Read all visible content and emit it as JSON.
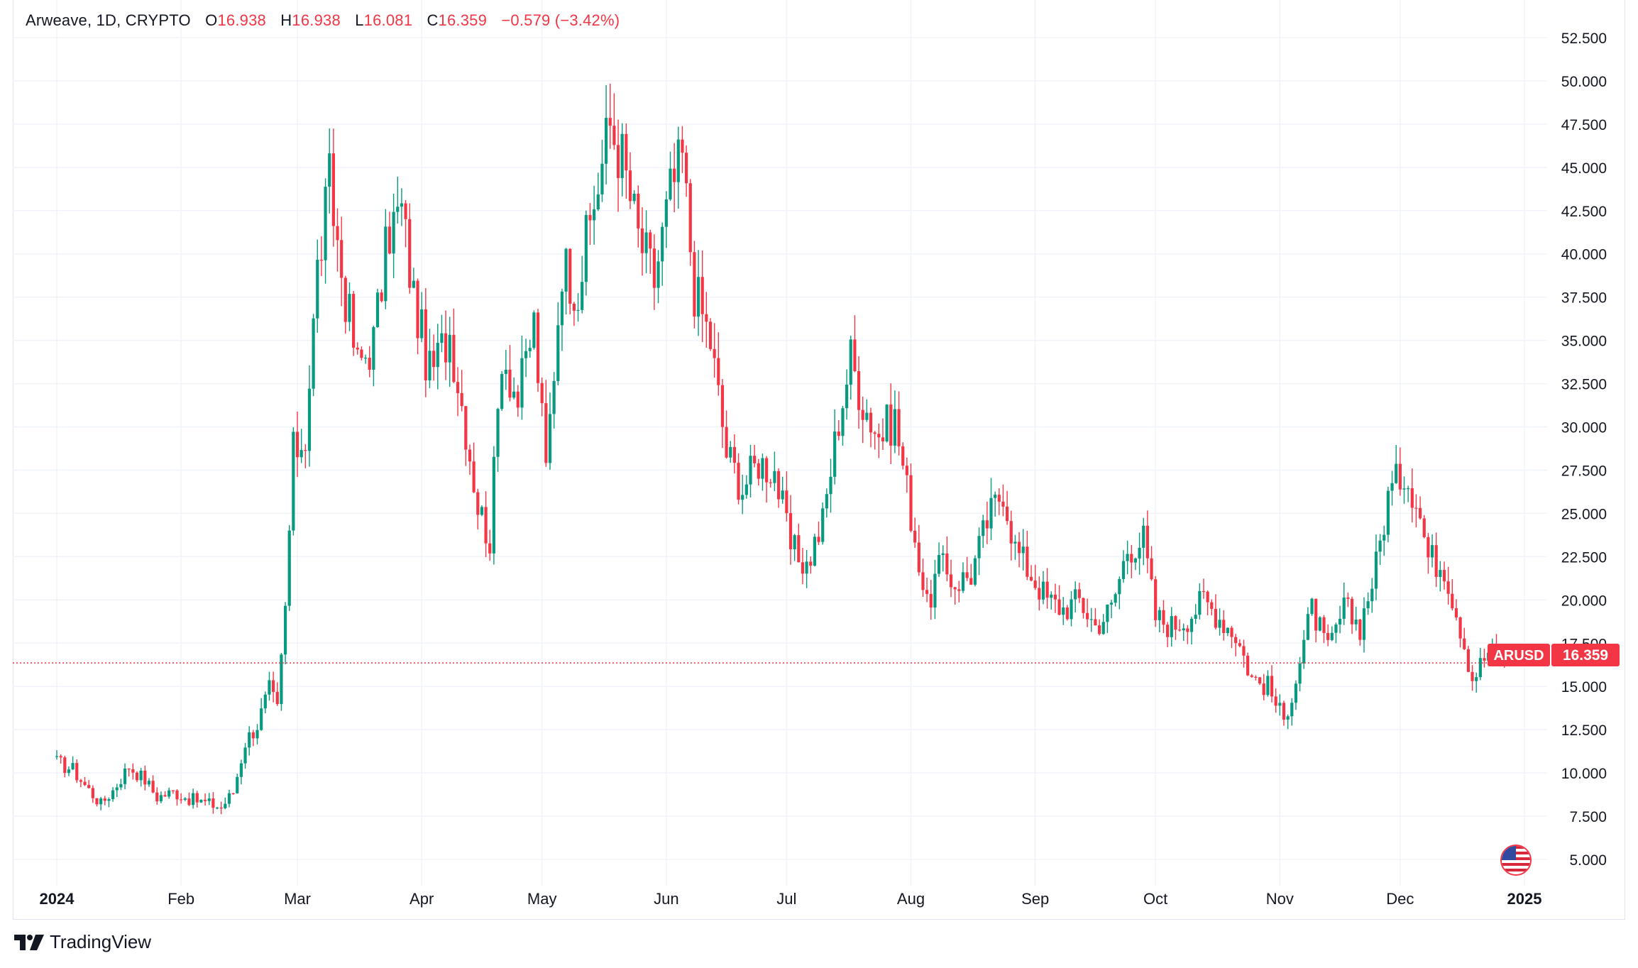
{
  "legend": {
    "symbol": "Arweave, 1D, CRYPTO",
    "open_label": "O",
    "open": "16.938",
    "high_label": "H",
    "high": "16.938",
    "low_label": "L",
    "low": "16.081",
    "close_label": "C",
    "close": "16.359",
    "change": "−0.579 (−3.42%)"
  },
  "price_tag": {
    "ticker": "ARUSD",
    "value": "16.359"
  },
  "brand": "TradingView",
  "colors": {
    "up": "#089981",
    "down": "#f23645",
    "grid": "#f0f3fa",
    "text": "#131722"
  },
  "chart_data": {
    "type": "candlestick",
    "title": "Arweave, 1D, CRYPTO",
    "y_ticks": [
      "52.500",
      "50.000",
      "47.500",
      "45.000",
      "42.500",
      "40.000",
      "37.500",
      "35.000",
      "32.500",
      "30.000",
      "27.500",
      "25.000",
      "22.500",
      "20.000",
      "17.500",
      "15.000",
      "12.500",
      "10.000",
      "7.500",
      "5.000"
    ],
    "ylim": [
      3.5,
      54.5
    ],
    "x_ticks": [
      "2024",
      "Feb",
      "Mar",
      "Apr",
      "May",
      "Jun",
      "Jul",
      "Aug",
      "Sep",
      "Oct",
      "Nov",
      "Dec",
      "2025"
    ],
    "last_price": 16.359,
    "grid": true,
    "close_series_approx": [
      [
        "2024-01-01",
        10.6
      ],
      [
        "2024-01-05",
        10.2
      ],
      [
        "2024-01-08",
        9.3
      ],
      [
        "2024-01-12",
        8.2
      ],
      [
        "2024-01-15",
        9.0
      ],
      [
        "2024-01-19",
        10.4
      ],
      [
        "2024-01-23",
        9.6
      ],
      [
        "2024-01-26",
        8.6
      ],
      [
        "2024-01-30",
        8.9
      ],
      [
        "2024-02-03",
        8.5
      ],
      [
        "2024-02-07",
        8.3
      ],
      [
        "2024-02-11",
        8.0
      ],
      [
        "2024-02-14",
        8.9
      ],
      [
        "2024-02-17",
        11.8
      ],
      [
        "2024-02-20",
        12.8
      ],
      [
        "2024-02-23",
        14.8
      ],
      [
        "2024-02-25",
        13.6
      ],
      [
        "2024-02-27",
        19.5
      ],
      [
        "2024-02-29",
        28.5
      ],
      [
        "2024-03-03",
        29.5
      ],
      [
        "2024-03-06",
        39.0
      ],
      [
        "2024-03-09",
        44.0
      ],
      [
        "2024-03-12",
        39.0
      ],
      [
        "2024-03-16",
        33.5
      ],
      [
        "2024-03-20",
        35.0
      ],
      [
        "2024-03-24",
        41.5
      ],
      [
        "2024-03-27",
        42.5
      ],
      [
        "2024-03-30",
        37.5
      ],
      [
        "2024-04-03",
        33.0
      ],
      [
        "2024-04-08",
        35.5
      ],
      [
        "2024-04-12",
        30.0
      ],
      [
        "2024-04-15",
        25.5
      ],
      [
        "2024-04-18",
        23.5
      ],
      [
        "2024-04-21",
        34.5
      ],
      [
        "2024-04-25",
        31.5
      ],
      [
        "2024-04-29",
        36.0
      ],
      [
        "2024-05-02",
        27.5
      ],
      [
        "2024-05-06",
        39.5
      ],
      [
        "2024-05-10",
        38.0
      ],
      [
        "2024-05-14",
        43.0
      ],
      [
        "2024-05-18",
        47.5
      ],
      [
        "2024-05-21",
        45.5
      ],
      [
        "2024-05-25",
        41.0
      ],
      [
        "2024-05-29",
        38.5
      ],
      [
        "2024-06-02",
        43.5
      ],
      [
        "2024-06-05",
        45.5
      ],
      [
        "2024-06-08",
        38.0
      ],
      [
        "2024-06-12",
        35.0
      ],
      [
        "2024-06-16",
        28.5
      ],
      [
        "2024-06-20",
        26.5
      ],
      [
        "2024-06-24",
        28.0
      ],
      [
        "2024-06-28",
        27.5
      ],
      [
        "2024-07-02",
        23.0
      ],
      [
        "2024-07-06",
        22.0
      ],
      [
        "2024-07-10",
        24.5
      ],
      [
        "2024-07-14",
        30.5
      ],
      [
        "2024-07-17",
        34.0
      ],
      [
        "2024-07-20",
        31.5
      ],
      [
        "2024-07-24",
        29.5
      ],
      [
        "2024-07-28",
        30.5
      ],
      [
        "2024-08-01",
        25.0
      ],
      [
        "2024-08-05",
        19.5
      ],
      [
        "2024-08-08",
        22.0
      ],
      [
        "2024-08-12",
        21.0
      ],
      [
        "2024-08-16",
        21.5
      ],
      [
        "2024-08-20",
        24.5
      ],
      [
        "2024-08-24",
        26.5
      ],
      [
        "2024-08-27",
        23.0
      ],
      [
        "2024-08-31",
        21.5
      ],
      [
        "2024-09-04",
        20.0
      ],
      [
        "2024-09-08",
        19.5
      ],
      [
        "2024-09-12",
        20.0
      ],
      [
        "2024-09-16",
        18.5
      ],
      [
        "2024-09-20",
        19.5
      ],
      [
        "2024-09-24",
        23.0
      ],
      [
        "2024-09-28",
        23.5
      ],
      [
        "2024-10-01",
        19.0
      ],
      [
        "2024-10-05",
        18.5
      ],
      [
        "2024-10-09",
        19.0
      ],
      [
        "2024-10-13",
        20.0
      ],
      [
        "2024-10-17",
        19.0
      ],
      [
        "2024-10-21",
        18.0
      ],
      [
        "2024-10-25",
        15.5
      ],
      [
        "2024-10-29",
        15.0
      ],
      [
        "2024-11-02",
        13.0
      ],
      [
        "2024-11-05",
        15.5
      ],
      [
        "2024-11-09",
        19.5
      ],
      [
        "2024-11-13",
        17.0
      ],
      [
        "2024-11-17",
        19.5
      ],
      [
        "2024-11-21",
        18.5
      ],
      [
        "2024-11-25",
        22.0
      ],
      [
        "2024-11-28",
        26.0
      ],
      [
        "2024-12-02",
        27.5
      ],
      [
        "2024-12-05",
        26.0
      ],
      [
        "2024-12-08",
        22.5
      ],
      [
        "2024-12-12",
        22.0
      ],
      [
        "2024-12-16",
        18.5
      ],
      [
        "2024-12-19",
        15.5
      ],
      [
        "2024-12-23",
        17.0
      ],
      [
        "2024-12-27",
        16.36
      ]
    ]
  }
}
